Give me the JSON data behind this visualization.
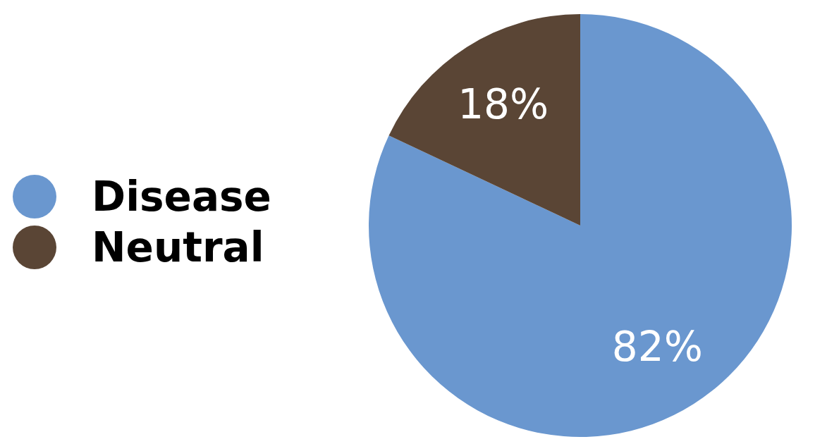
{
  "chart_data": {
    "type": "pie",
    "categories": [
      "Disease",
      "Neutral"
    ],
    "values": [
      82,
      18
    ],
    "colors": [
      "#6a97cf",
      "#5a4535"
    ],
    "value_labels": [
      "82%",
      "18%"
    ],
    "legend": "left"
  }
}
